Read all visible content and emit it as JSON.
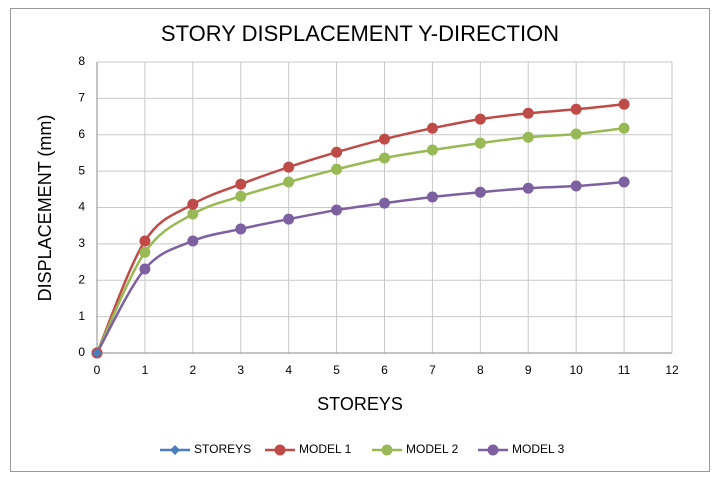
{
  "chart_data": {
    "type": "line",
    "title": "STORY DISPLACEMENT Y-DIRECTION",
    "x_label": "STOREYS",
    "y_label": "DISPLACEMENT (mm)",
    "x": [
      0,
      1,
      2,
      3,
      4,
      5,
      6,
      7,
      8,
      9,
      10,
      11
    ],
    "series": [
      {
        "name": "STOREYS",
        "color": "#4a7ebb",
        "marker": "diamond",
        "values": [
          0,
          null,
          null,
          null,
          null,
          null,
          null,
          null,
          null,
          null,
          null,
          null
        ]
      },
      {
        "name": "MODEL 1",
        "color": "#be4b48",
        "marker": "circle",
        "values": [
          0,
          3.08,
          4.09,
          4.64,
          5.11,
          5.52,
          5.88,
          6.18,
          6.43,
          6.59,
          6.7,
          6.84
        ]
      },
      {
        "name": "MODEL 2",
        "color": "#98b954",
        "marker": "circle",
        "values": [
          0,
          2.77,
          3.82,
          4.31,
          4.7,
          5.05,
          5.36,
          5.58,
          5.77,
          5.93,
          6.02,
          6.18
        ]
      },
      {
        "name": "MODEL 3",
        "color": "#7d60a0",
        "marker": "circle",
        "values": [
          0,
          2.31,
          3.08,
          3.41,
          3.68,
          3.93,
          4.12,
          4.29,
          4.42,
          4.53,
          4.59,
          4.7
        ]
      }
    ],
    "xlim": [
      0,
      12
    ],
    "xticks": [
      0,
      1,
      2,
      3,
      4,
      5,
      6,
      7,
      8,
      9,
      10,
      11,
      12
    ],
    "ylim": [
      0,
      8
    ],
    "yticks": [
      0,
      1,
      2,
      3,
      4,
      5,
      6,
      7,
      8
    ],
    "grid": true,
    "smooth": true,
    "legend": "bottom"
  }
}
